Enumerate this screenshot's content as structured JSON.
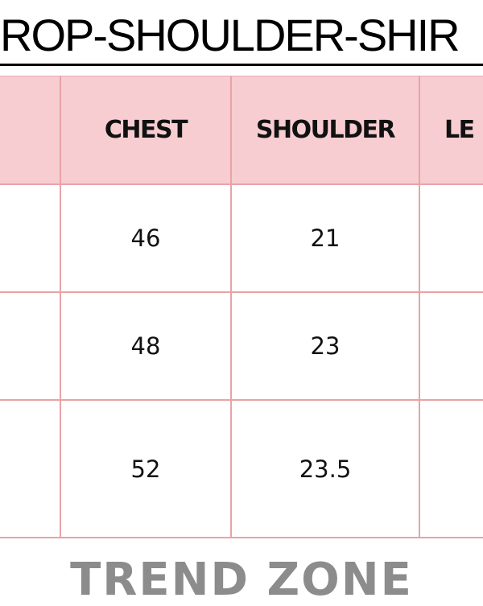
{
  "title": "ROP-SHOULDER-SHIR",
  "table": {
    "headers": [
      "",
      "CHEST",
      "SHOULDER",
      "LE"
    ],
    "rows": [
      [
        "",
        "46",
        "21",
        ""
      ],
      [
        "",
        "48",
        "23",
        ""
      ],
      [
        "",
        "52",
        "23.5",
        ""
      ]
    ]
  },
  "footer": "TREND ZONE",
  "colors": {
    "header_fill": "#f7cdd1",
    "border": "#e8a3a7",
    "footer_text": "#8c8c8c"
  }
}
